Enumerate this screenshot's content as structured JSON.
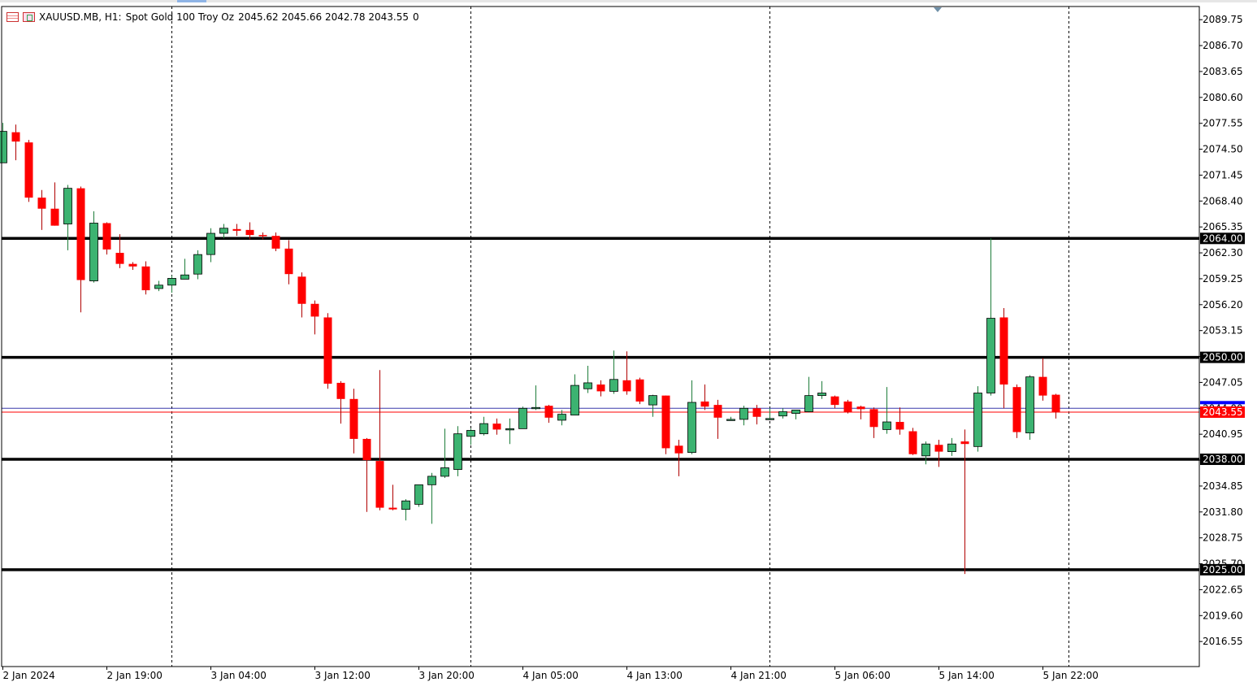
{
  "symbol_info": {
    "symbol": "XAUUSD.MB, H1:",
    "description": "Spot Gold 100 Troy Oz",
    "ohlc": "2045.62 2045.66 2042.78 2043.55",
    "volume": "0"
  },
  "colors": {
    "bull": "#3cb371",
    "bear": "#ff0000",
    "level_line": "#000000",
    "bid_line": "#ff0000",
    "ask_line": "#3a3aaa",
    "bid_label_bg": "#ff0000",
    "ask_label_bg": "#0000ff"
  },
  "chart_data": {
    "type": "candlestick",
    "ylim": [
      2013.6,
      2091.3
    ],
    "y_ticks": [
      "2089.75",
      "2086.70",
      "2083.65",
      "2080.60",
      "2077.55",
      "2074.50",
      "2071.45",
      "2068.40",
      "2065.35",
      "2062.30",
      "2059.25",
      "2056.20",
      "2053.15",
      "2050.10",
      "2047.05",
      "2044.00",
      "2040.95",
      "2037.90",
      "2034.85",
      "2031.80",
      "2028.75",
      "2025.70",
      "2022.65",
      "2019.60",
      "2016.55"
    ],
    "x_ticks": [
      {
        "label": "2 Jan 2024",
        "index": 0
      },
      {
        "label": "2 Jan 19:00",
        "index": 8
      },
      {
        "label": "3 Jan 04:00",
        "index": 16
      },
      {
        "label": "3 Jan 12:00",
        "index": 24
      },
      {
        "label": "3 Jan 20:00",
        "index": 32
      },
      {
        "label": "4 Jan 05:00",
        "index": 40
      },
      {
        "label": "4 Jan 13:00",
        "index": 48
      },
      {
        "label": "4 Jan 21:00",
        "index": 56
      },
      {
        "label": "5 Jan 06:00",
        "index": 64
      },
      {
        "label": "5 Jan 14:00",
        "index": 72
      },
      {
        "label": "5 Jan 22:00",
        "index": 80
      }
    ],
    "period_separators": [
      13,
      36,
      59,
      82
    ],
    "levels": [
      {
        "label": "2064.00",
        "value": 2064.0
      },
      {
        "label": "2050.00",
        "value": 2050.0
      },
      {
        "label": "2038.00",
        "value": 2038.0
      },
      {
        "label": "2025.00",
        "value": 2025.0
      }
    ],
    "bid": {
      "label": "2043.55",
      "value": 2043.55
    },
    "ask": {
      "value": 2044.0
    },
    "candles": [
      {
        "o": 2072.9,
        "h": 2077.6,
        "l": 2072.9,
        "c": 2076.6
      },
      {
        "o": 2076.5,
        "h": 2077.4,
        "l": 2073.2,
        "c": 2075.4
      },
      {
        "o": 2075.3,
        "h": 2075.6,
        "l": 2068.3,
        "c": 2068.8
      },
      {
        "o": 2068.8,
        "h": 2069.7,
        "l": 2065.0,
        "c": 2067.5
      },
      {
        "o": 2067.5,
        "h": 2070.6,
        "l": 2065.5,
        "c": 2065.5
      },
      {
        "o": 2065.7,
        "h": 2070.3,
        "l": 2062.6,
        "c": 2069.9
      },
      {
        "o": 2069.9,
        "h": 2070.1,
        "l": 2055.3,
        "c": 2059.1
      },
      {
        "o": 2059.0,
        "h": 2067.2,
        "l": 2058.8,
        "c": 2065.8
      },
      {
        "o": 2065.8,
        "h": 2065.9,
        "l": 2062.1,
        "c": 2062.7
      },
      {
        "o": 2062.3,
        "h": 2064.5,
        "l": 2060.5,
        "c": 2061.0
      },
      {
        "o": 2061.0,
        "h": 2061.2,
        "l": 2060.3,
        "c": 2060.7
      },
      {
        "o": 2060.7,
        "h": 2061.3,
        "l": 2057.4,
        "c": 2057.9
      },
      {
        "o": 2058.1,
        "h": 2059.0,
        "l": 2057.8,
        "c": 2058.5
      },
      {
        "o": 2058.5,
        "h": 2059.6,
        "l": 2057.6,
        "c": 2059.3
      },
      {
        "o": 2059.2,
        "h": 2061.6,
        "l": 2059.2,
        "c": 2059.7
      },
      {
        "o": 2059.8,
        "h": 2062.6,
        "l": 2059.2,
        "c": 2062.1
      },
      {
        "o": 2062.1,
        "h": 2065.2,
        "l": 2061.2,
        "c": 2064.6
      },
      {
        "o": 2064.6,
        "h": 2065.7,
        "l": 2064.0,
        "c": 2065.2
      },
      {
        "o": 2065.1,
        "h": 2065.7,
        "l": 2064.3,
        "c": 2064.9
      },
      {
        "o": 2065.0,
        "h": 2065.9,
        "l": 2063.9,
        "c": 2064.4
      },
      {
        "o": 2064.4,
        "h": 2064.7,
        "l": 2063.9,
        "c": 2064.3
      },
      {
        "o": 2064.3,
        "h": 2064.7,
        "l": 2062.5,
        "c": 2062.8
      },
      {
        "o": 2062.8,
        "h": 2063.8,
        "l": 2058.6,
        "c": 2059.8
      },
      {
        "o": 2059.5,
        "h": 2060.0,
        "l": 2054.7,
        "c": 2056.3
      },
      {
        "o": 2056.3,
        "h": 2056.7,
        "l": 2052.7,
        "c": 2054.8
      },
      {
        "o": 2054.7,
        "h": 2055.2,
        "l": 2046.3,
        "c": 2046.9
      },
      {
        "o": 2047.0,
        "h": 2047.2,
        "l": 2042.2,
        "c": 2045.1
      },
      {
        "o": 2045.1,
        "h": 2046.3,
        "l": 2038.7,
        "c": 2040.4
      },
      {
        "o": 2040.4,
        "h": 2040.5,
        "l": 2031.8,
        "c": 2037.9
      },
      {
        "o": 2037.8,
        "h": 2048.5,
        "l": 2032.0,
        "c": 2032.3
      },
      {
        "o": 2032.3,
        "h": 2035.0,
        "l": 2032.0,
        "c": 2032.1
      },
      {
        "o": 2032.1,
        "h": 2033.3,
        "l": 2030.8,
        "c": 2033.1
      },
      {
        "o": 2032.7,
        "h": 2035.0,
        "l": 2032.4,
        "c": 2035.0
      },
      {
        "o": 2035.0,
        "h": 2036.4,
        "l": 2030.4,
        "c": 2036.0
      },
      {
        "o": 2036.0,
        "h": 2041.6,
        "l": 2035.8,
        "c": 2037.0
      },
      {
        "o": 2036.8,
        "h": 2041.9,
        "l": 2036.0,
        "c": 2041.0
      },
      {
        "o": 2040.7,
        "h": 2041.6,
        "l": 2039.7,
        "c": 2041.4
      },
      {
        "o": 2041.0,
        "h": 2043.0,
        "l": 2040.8,
        "c": 2042.2
      },
      {
        "o": 2042.2,
        "h": 2042.8,
        "l": 2040.9,
        "c": 2041.5
      },
      {
        "o": 2041.6,
        "h": 2042.8,
        "l": 2039.8,
        "c": 2041.6
      },
      {
        "o": 2041.6,
        "h": 2044.2,
        "l": 2041.6,
        "c": 2044.0
      },
      {
        "o": 2044.0,
        "h": 2046.7,
        "l": 2043.8,
        "c": 2044.1
      },
      {
        "o": 2044.3,
        "h": 2044.4,
        "l": 2042.3,
        "c": 2042.9
      },
      {
        "o": 2042.6,
        "h": 2043.8,
        "l": 2042.0,
        "c": 2043.3
      },
      {
        "o": 2043.2,
        "h": 2048.0,
        "l": 2043.2,
        "c": 2046.7
      },
      {
        "o": 2046.3,
        "h": 2049.0,
        "l": 2045.8,
        "c": 2047.0
      },
      {
        "o": 2046.8,
        "h": 2047.3,
        "l": 2045.4,
        "c": 2046.0
      },
      {
        "o": 2046.0,
        "h": 2050.8,
        "l": 2045.7,
        "c": 2047.4
      },
      {
        "o": 2047.3,
        "h": 2050.7,
        "l": 2045.6,
        "c": 2046.0
      },
      {
        "o": 2047.4,
        "h": 2047.6,
        "l": 2044.5,
        "c": 2044.8
      },
      {
        "o": 2044.4,
        "h": 2045.6,
        "l": 2043.0,
        "c": 2045.5
      },
      {
        "o": 2045.5,
        "h": 2045.5,
        "l": 2038.6,
        "c": 2039.3
      },
      {
        "o": 2039.6,
        "h": 2040.3,
        "l": 2036.0,
        "c": 2038.7
      },
      {
        "o": 2038.8,
        "h": 2047.3,
        "l": 2038.6,
        "c": 2044.7
      },
      {
        "o": 2044.8,
        "h": 2046.8,
        "l": 2043.8,
        "c": 2044.2
      },
      {
        "o": 2044.4,
        "h": 2045.0,
        "l": 2040.4,
        "c": 2042.9
      },
      {
        "o": 2042.6,
        "h": 2043.0,
        "l": 2042.6,
        "c": 2042.7
      },
      {
        "o": 2042.7,
        "h": 2044.3,
        "l": 2042.0,
        "c": 2044.0
      },
      {
        "o": 2044.0,
        "h": 2044.4,
        "l": 2042.1,
        "c": 2043.0
      },
      {
        "o": 2042.7,
        "h": 2044.0,
        "l": 2042.6,
        "c": 2042.8
      },
      {
        "o": 2043.1,
        "h": 2044.0,
        "l": 2042.8,
        "c": 2043.6
      },
      {
        "o": 2043.4,
        "h": 2043.8,
        "l": 2042.7,
        "c": 2043.8
      },
      {
        "o": 2043.6,
        "h": 2047.7,
        "l": 2043.5,
        "c": 2045.5
      },
      {
        "o": 2045.5,
        "h": 2047.2,
        "l": 2045.1,
        "c": 2045.8
      },
      {
        "o": 2045.4,
        "h": 2045.5,
        "l": 2044.0,
        "c": 2044.4
      },
      {
        "o": 2044.8,
        "h": 2045.0,
        "l": 2043.4,
        "c": 2043.6
      },
      {
        "o": 2044.2,
        "h": 2044.3,
        "l": 2042.7,
        "c": 2043.9
      },
      {
        "o": 2043.9,
        "h": 2044.1,
        "l": 2040.5,
        "c": 2041.8
      },
      {
        "o": 2041.5,
        "h": 2046.5,
        "l": 2041.0,
        "c": 2042.4
      },
      {
        "o": 2042.4,
        "h": 2044.1,
        "l": 2040.9,
        "c": 2041.5
      },
      {
        "o": 2041.3,
        "h": 2041.7,
        "l": 2038.5,
        "c": 2038.6
      },
      {
        "o": 2038.4,
        "h": 2040.1,
        "l": 2037.4,
        "c": 2039.8
      },
      {
        "o": 2039.7,
        "h": 2040.3,
        "l": 2037.1,
        "c": 2038.9
      },
      {
        "o": 2038.9,
        "h": 2040.5,
        "l": 2038.4,
        "c": 2039.8
      },
      {
        "o": 2040.1,
        "h": 2041.5,
        "l": 2024.5,
        "c": 2039.8
      },
      {
        "o": 2039.5,
        "h": 2046.6,
        "l": 2038.9,
        "c": 2045.8
      },
      {
        "o": 2045.8,
        "h": 2064.0,
        "l": 2045.5,
        "c": 2054.6
      },
      {
        "o": 2054.7,
        "h": 2055.8,
        "l": 2044.0,
        "c": 2046.8
      },
      {
        "o": 2046.5,
        "h": 2046.8,
        "l": 2040.5,
        "c": 2041.2
      },
      {
        "o": 2041.1,
        "h": 2047.9,
        "l": 2040.3,
        "c": 2047.7
      },
      {
        "o": 2047.7,
        "h": 2049.9,
        "l": 2044.9,
        "c": 2045.5
      },
      {
        "o": 2045.6,
        "h": 2045.7,
        "l": 2042.8,
        "c": 2043.6
      }
    ]
  }
}
